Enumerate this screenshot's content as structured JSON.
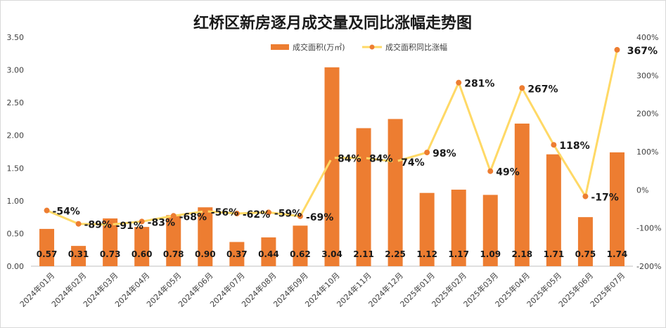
{
  "chart_data": {
    "type": "bar+line",
    "title": "红桥区新房逐月成交量及同比涨幅走势图",
    "categories": [
      "2024年01月",
      "2024年02月",
      "2024年03月",
      "2024年04月",
      "2024年05月",
      "2024年06月",
      "2024年07月",
      "2024年08月",
      "2024年09月",
      "2024年10月",
      "2024年11月",
      "2024年12月",
      "2025年01月",
      "2025年02月",
      "2025年03月",
      "2025年04月",
      "2025年05月",
      "2025年06月",
      "2025年07月"
    ],
    "series": [
      {
        "name": "成交面积(万㎡)",
        "type": "bar",
        "axis": "left",
        "color": "#ED7D31",
        "values": [
          0.57,
          0.31,
          0.73,
          0.6,
          0.78,
          0.9,
          0.37,
          0.44,
          0.62,
          3.04,
          2.11,
          2.25,
          1.12,
          1.17,
          1.09,
          2.18,
          1.71,
          0.75,
          1.74
        ],
        "labels": [
          "0.57",
          "0.31",
          "0.73",
          "0.60",
          "0.78",
          "0.90",
          "0.37",
          "0.44",
          "0.62",
          "3.04",
          "2.11",
          "2.25",
          "1.12",
          "1.17",
          "1.09",
          "2.18",
          "1.71",
          "0.75",
          "1.74"
        ]
      },
      {
        "name": "成交面积同比涨幅",
        "type": "line",
        "axis": "right",
        "color": "#FFD966",
        "marker_color": "#ED7D31",
        "values": [
          -54,
          -89,
          -91,
          -83,
          -68,
          -56,
          -62,
          -59,
          -69,
          84,
          84,
          74,
          98,
          281,
          49,
          267,
          118,
          -17,
          367
        ],
        "labels": [
          "-54%",
          "-89%",
          "-91%",
          "-83%",
          "-68%",
          "-56%",
          "-62%",
          "-59%",
          "-69%",
          "84%",
          "84%",
          "74%",
          "98%",
          "281%",
          "49%",
          "267%",
          "118%",
          "-17%",
          "367%"
        ]
      }
    ],
    "y_left": {
      "range": [
        0,
        3.5
      ],
      "ticks": [
        0,
        0.5,
        1.0,
        1.5,
        2.0,
        2.5,
        3.0,
        3.5
      ],
      "tick_labels": [
        "0.00",
        "0.50",
        "1.00",
        "1.50",
        "2.00",
        "2.50",
        "3.00",
        "3.50"
      ]
    },
    "y_right": {
      "range": [
        -200,
        400
      ],
      "ticks": [
        -200,
        -100,
        0,
        100,
        200,
        300,
        400
      ],
      "tick_labels": [
        "-200%",
        "-100%",
        "0%",
        "100%",
        "200%",
        "300%",
        "400%"
      ]
    },
    "grid": false,
    "legend_placement": "top-center"
  }
}
